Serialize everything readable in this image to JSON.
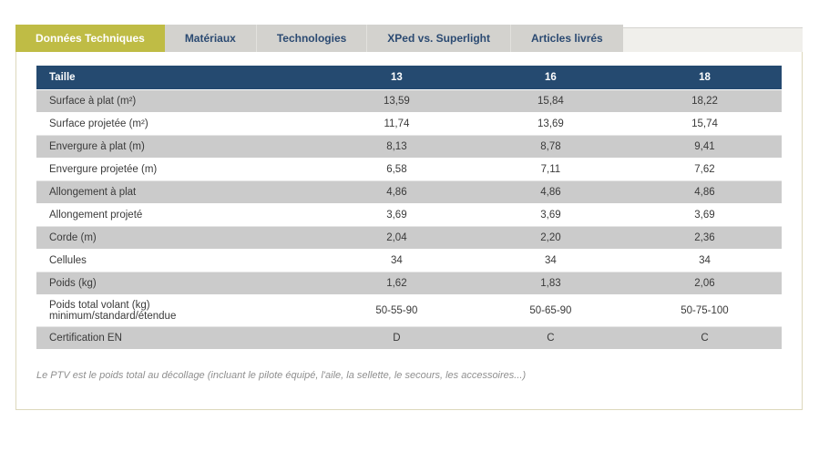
{
  "tabs": [
    {
      "label": "Données Techniques",
      "active": true
    },
    {
      "label": "Matériaux",
      "active": false
    },
    {
      "label": "Technologies",
      "active": false
    },
    {
      "label": "XPed vs. Superlight",
      "active": false
    },
    {
      "label": "Articles livrés",
      "active": false
    }
  ],
  "table": {
    "header": [
      "Taille",
      "13",
      "16",
      "18"
    ],
    "rows": [
      {
        "label": "Surface à plat (m²)",
        "values": [
          "13,59",
          "15,84",
          "18,22"
        ]
      },
      {
        "label": "Surface projetée (m²)",
        "values": [
          "11,74",
          "13,69",
          "15,74"
        ]
      },
      {
        "label": "Envergure à plat (m)",
        "values": [
          "8,13",
          "8,78",
          "9,41"
        ]
      },
      {
        "label": "Envergure projetée (m)",
        "values": [
          "6,58",
          "7,11",
          "7,62"
        ]
      },
      {
        "label": "Allongement à plat",
        "values": [
          "4,86",
          "4,86",
          "4,86"
        ]
      },
      {
        "label": "Allongement projeté",
        "values": [
          "3,69",
          "3,69",
          "3,69"
        ]
      },
      {
        "label": "Corde (m)",
        "values": [
          "2,04",
          "2,20",
          "2,36"
        ]
      },
      {
        "label": "Cellules",
        "values": [
          "34",
          "34",
          "34"
        ]
      },
      {
        "label": "Poids (kg)",
        "values": [
          "1,62",
          "1,83",
          "2,06"
        ]
      },
      {
        "label": "Poids total volant (kg)",
        "label_line2": "minimum/standard/étendue",
        "values": [
          "50-55-90",
          "50-65-90",
          "50-75-100"
        ]
      },
      {
        "label": "Certification EN",
        "values": [
          "D",
          "C",
          "C"
        ]
      }
    ]
  },
  "footnote": "Le PTV est le poids total au décollage (incluant le pilote équipé, l'aile, la sellette, le secours, les accessoires...)",
  "colors": {
    "tab_active": "#bfbc45",
    "tab_inactive": "#d3d2ce",
    "tab_text": "#2b4a72",
    "table_header": "#254a70",
    "row_gray": "#cbcbcb",
    "panel_border": "#ddd8bc"
  }
}
